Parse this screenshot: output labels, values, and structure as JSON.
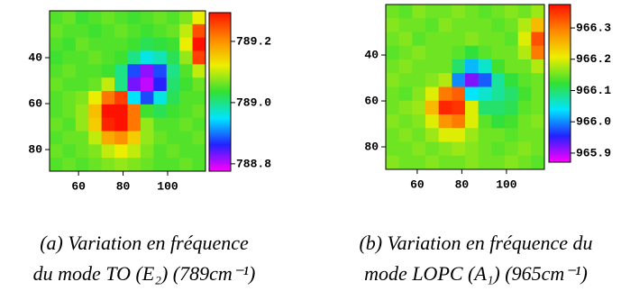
{
  "chart_data": [
    {
      "type": "heatmap",
      "xlim": [
        47,
        117
      ],
      "xticks": [
        60,
        80,
        100
      ],
      "ylim": [
        89.4,
        19.6
      ],
      "yticks": [
        40,
        60,
        80
      ],
      "zlim": [
        788.776,
        789.294
      ],
      "zticks": [
        788.8,
        {
          "value": 789,
          "label": "789.0"
        },
        789.2
      ],
      "colormap": [
        "#ff00ff",
        "#2222ff",
        "#00e5ff",
        "#33e033",
        "#eeee00",
        "#ff8800",
        "#ff1100"
      ],
      "z": [
        [
          789.05,
          789.06,
          789.04,
          789.05,
          789.06,
          789.05,
          789.04,
          789.05,
          789.06,
          789.05,
          789.07,
          789.12
        ],
        [
          789.06,
          789.05,
          789.05,
          789.04,
          789.05,
          789.06,
          789.05,
          789.04,
          789.05,
          789.06,
          789.1,
          789.25
        ],
        [
          789.05,
          789.04,
          789.06,
          789.05,
          789.05,
          789.05,
          789.04,
          789.02,
          789.03,
          789.04,
          789.12,
          789.3
        ],
        [
          789.04,
          789.05,
          789.05,
          789.06,
          789.05,
          789.04,
          789.0,
          788.96,
          788.98,
          789.02,
          789.08,
          789.26
        ],
        [
          789.05,
          789.06,
          789.05,
          789.05,
          789.04,
          789.0,
          788.88,
          788.82,
          788.88,
          789.0,
          789.05,
          789.1
        ],
        [
          789.06,
          789.05,
          789.05,
          789.06,
          789.1,
          789.0,
          788.83,
          788.8,
          788.86,
          789.01,
          789.04,
          789.06
        ],
        [
          789.05,
          789.06,
          789.07,
          789.12,
          789.22,
          789.26,
          788.95,
          788.88,
          788.96,
          789.02,
          789.05,
          789.05
        ],
        [
          789.05,
          789.06,
          789.08,
          789.16,
          789.3,
          789.31,
          789.22,
          789.04,
          789.02,
          789.04,
          789.05,
          789.06
        ],
        [
          789.06,
          789.05,
          789.08,
          789.15,
          789.28,
          789.3,
          789.22,
          789.08,
          789.05,
          789.05,
          789.06,
          789.05
        ],
        [
          789.05,
          789.06,
          789.06,
          789.1,
          789.18,
          789.2,
          789.15,
          789.08,
          789.06,
          789.05,
          789.05,
          789.06
        ],
        [
          789.06,
          789.05,
          789.06,
          789.07,
          789.1,
          789.12,
          789.1,
          789.07,
          789.05,
          789.06,
          789.05,
          789.05
        ],
        [
          789.05,
          789.06,
          789.05,
          789.06,
          789.07,
          789.08,
          789.07,
          789.06,
          789.05,
          789.05,
          789.06,
          789.05
        ]
      ],
      "caption": [
        "(a) Variation en fréquence",
        "du mode TO (E₂) (789cm⁻¹)"
      ]
    },
    {
      "type": "heatmap",
      "xlim": [
        45.9,
        117
      ],
      "xticks": [
        60,
        80,
        100
      ],
      "ylim": [
        89.8,
        18
      ],
      "yticks": [
        40,
        60,
        80
      ],
      "zlim": [
        965.871,
        966.375
      ],
      "zticks": [
        965.9,
        {
          "value": 966,
          "label": "966.0"
        },
        966.1,
        966.2,
        966.3
      ],
      "colormap": [
        "#ff00ff",
        "#2222ff",
        "#00e5ff",
        "#33e033",
        "#eeee00",
        "#ff8800",
        "#ff1100"
      ],
      "z": [
        [
          966.15,
          966.14,
          966.16,
          966.15,
          966.15,
          966.16,
          966.15,
          966.14,
          966.15,
          966.16,
          966.15,
          966.17
        ],
        [
          966.16,
          966.15,
          966.15,
          966.14,
          966.16,
          966.15,
          966.15,
          966.15,
          966.14,
          966.15,
          966.18,
          966.25
        ],
        [
          966.15,
          966.16,
          966.14,
          966.15,
          966.15,
          966.15,
          966.16,
          966.15,
          966.15,
          966.14,
          966.2,
          966.33
        ],
        [
          966.14,
          966.15,
          966.16,
          966.15,
          966.15,
          966.14,
          966.12,
          966.14,
          966.15,
          966.15,
          966.18,
          966.3
        ],
        [
          966.15,
          966.16,
          966.15,
          966.15,
          966.15,
          966.1,
          966.02,
          966.06,
          966.13,
          966.15,
          966.15,
          966.18
        ],
        [
          966.16,
          966.15,
          966.15,
          966.16,
          966.18,
          966.0,
          965.92,
          965.98,
          966.08,
          966.12,
          966.14,
          966.15
        ],
        [
          966.15,
          966.14,
          966.16,
          966.2,
          966.3,
          966.32,
          966.04,
          966.06,
          966.08,
          966.1,
          966.13,
          966.15
        ],
        [
          966.15,
          966.16,
          966.17,
          966.25,
          966.36,
          966.35,
          966.2,
          966.1,
          966.1,
          966.11,
          966.14,
          966.15
        ],
        [
          966.16,
          966.15,
          966.16,
          966.2,
          966.28,
          966.3,
          966.2,
          966.14,
          966.12,
          966.13,
          966.15,
          966.16
        ],
        [
          966.15,
          966.16,
          966.15,
          966.17,
          966.2,
          966.2,
          966.17,
          966.15,
          966.15,
          966.14,
          966.15,
          966.15
        ],
        [
          966.15,
          966.15,
          966.16,
          966.15,
          966.16,
          966.17,
          966.16,
          966.15,
          966.14,
          966.15,
          966.16,
          966.15
        ],
        [
          966.16,
          966.15,
          966.15,
          966.16,
          966.15,
          966.15,
          966.16,
          966.15,
          966.15,
          966.16,
          966.15,
          966.14
        ]
      ],
      "caption": [
        "(b) Variation en fréquence du",
        "mode LOPC (A₁) (965cm⁻¹)"
      ]
    }
  ]
}
